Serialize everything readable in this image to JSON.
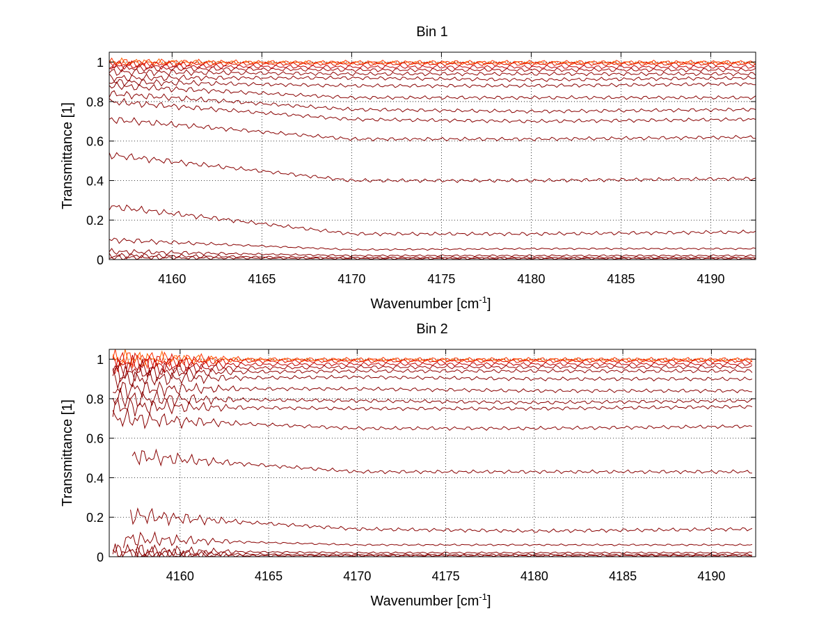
{
  "chart_data": [
    {
      "type": "line",
      "title": "Bin 1",
      "xlabel": "Wavenumber [cm-1]",
      "xlabel_base": "Wavenumber [cm",
      "xlabel_sup": "-1",
      "xlabel_end": "]",
      "ylabel": "Transmittance [1]",
      "xlim": [
        4156.5,
        4192.5
      ],
      "ylim": [
        0,
        1.05
      ],
      "xticks": [
        4160,
        4165,
        4170,
        4175,
        4180,
        4185,
        4190
      ],
      "yticks": [
        0,
        0.2,
        0.4,
        0.6,
        0.8,
        1
      ],
      "ytick_labels": [
        "0",
        "0.2",
        "0.4",
        "0.6",
        "0.8",
        "1"
      ],
      "grid": true,
      "x_start": 4156.5,
      "series": [
        {
          "values": [
            1.0,
            1.0,
            1.0,
            1.0
          ],
          "x": [
            4156.5,
            4170,
            4180,
            4192.5
          ],
          "color": "#ff3000"
        },
        {
          "values": [
            1.0,
            0.995,
            0.995,
            0.995
          ],
          "x": [
            4156.5,
            4170,
            4180,
            4192.5
          ],
          "color": "#ff6000"
        },
        {
          "values": [
            0.99,
            0.99,
            0.99,
            0.99
          ],
          "x": [
            4156.5,
            4170,
            4180,
            4192.5
          ],
          "color": "#e01000"
        },
        {
          "values": [
            0.98,
            0.975,
            0.975,
            0.975
          ],
          "x": [
            4156.5,
            4170,
            4180,
            4192.5
          ],
          "color": "#c00000"
        },
        {
          "values": [
            0.97,
            0.96,
            0.96,
            0.96
          ],
          "x": [
            4156.5,
            4170,
            4180,
            4192.5
          ],
          "color": "#a00000"
        },
        {
          "values": [
            0.95,
            0.94,
            0.94,
            0.94
          ],
          "x": [
            4156.5,
            4170,
            4180,
            4192.5
          ],
          "color": "#900000"
        },
        {
          "values": [
            0.92,
            0.92,
            0.91,
            0.92
          ],
          "x": [
            4156.5,
            4170,
            4180,
            4192.5
          ],
          "color": "#900000"
        },
        {
          "values": [
            0.9,
            0.88,
            0.88,
            0.89
          ],
          "x": [
            4156.5,
            4170,
            4180,
            4192.5
          ],
          "color": "#880000"
        },
        {
          "values": [
            0.88,
            0.82,
            0.82,
            0.82
          ],
          "x": [
            4156.5,
            4170,
            4180,
            4192.5
          ],
          "color": "#880000"
        },
        {
          "values": [
            0.84,
            0.76,
            0.75,
            0.76
          ],
          "x": [
            4156.5,
            4170,
            4180,
            4192.5
          ],
          "color": "#880000"
        },
        {
          "values": [
            0.8,
            0.71,
            0.7,
            0.71
          ],
          "x": [
            4156.5,
            4170,
            4180,
            4192.5
          ],
          "color": "#880000"
        },
        {
          "values": [
            0.71,
            0.61,
            0.61,
            0.62
          ],
          "x": [
            4156.5,
            4170,
            4180,
            4192.5
          ],
          "color": "#880000"
        },
        {
          "values": [
            0.53,
            0.4,
            0.4,
            0.41
          ],
          "x": [
            4156.5,
            4170,
            4180,
            4192.5
          ],
          "color": "#880000"
        },
        {
          "values": [
            0.27,
            0.13,
            0.13,
            0.14
          ],
          "x": [
            4156.5,
            4170,
            4180,
            4192.5
          ],
          "color": "#880000"
        },
        {
          "values": [
            0.1,
            0.05,
            0.055,
            0.055
          ],
          "x": [
            4156.5,
            4170,
            4180,
            4192.5
          ],
          "color": "#880000"
        },
        {
          "values": [
            0.04,
            0.02,
            0.02,
            0.02
          ],
          "x": [
            4156.5,
            4170,
            4180,
            4192.5
          ],
          "color": "#880000"
        },
        {
          "values": [
            0.02,
            0.01,
            0.01,
            0.01
          ],
          "x": [
            4156.5,
            4170,
            4180,
            4192.5
          ],
          "color": "#880000"
        },
        {
          "values": [
            0.01,
            0.005,
            0.005,
            0.005
          ],
          "x": [
            4156.5,
            4170,
            4180,
            4192.5
          ],
          "color": "#880000"
        }
      ]
    },
    {
      "type": "line",
      "title": "Bin 2",
      "xlabel": "Wavenumber [cm-1]",
      "xlabel_base": "Wavenumber [cm",
      "xlabel_sup": "-1",
      "xlabel_end": "]",
      "ylabel": "Transmittance [1]",
      "xlim": [
        4156,
        4192.5
      ],
      "ylim": [
        0,
        1.05
      ],
      "xticks": [
        4160,
        4165,
        4170,
        4175,
        4180,
        4185,
        4190
      ],
      "yticks": [
        0,
        0.2,
        0.4,
        0.6,
        0.8,
        1
      ],
      "ytick_labels": [
        "0",
        "0.2",
        "0.4",
        "0.6",
        "0.8",
        "1"
      ],
      "grid": true,
      "series": [
        {
          "values": [
            1.0,
            1.0,
            1.0,
            1.0
          ],
          "x": [
            4156.2,
            4170,
            4180,
            4192.3
          ],
          "color": "#ff3000"
        },
        {
          "values": [
            1.0,
            0.995,
            0.995,
            0.995
          ],
          "x": [
            4156.2,
            4170,
            4180,
            4192.3
          ],
          "color": "#ff6000"
        },
        {
          "values": [
            0.99,
            0.99,
            0.99,
            0.99
          ],
          "x": [
            4156.2,
            4170,
            4180,
            4192.3
          ],
          "color": "#e01000"
        },
        {
          "values": [
            0.97,
            0.975,
            0.975,
            0.975
          ],
          "x": [
            4156.2,
            4170,
            4180,
            4192.3
          ],
          "color": "#c00000"
        },
        {
          "values": [
            0.95,
            0.96,
            0.96,
            0.96
          ],
          "x": [
            4156.2,
            4170,
            4180,
            4192.3
          ],
          "color": "#a00000"
        },
        {
          "values": [
            0.93,
            0.94,
            0.94,
            0.94
          ],
          "x": [
            4156.2,
            4170,
            4180,
            4192.3
          ],
          "color": "#900000"
        },
        {
          "values": [
            0.9,
            0.91,
            0.9,
            0.9
          ],
          "x": [
            4156.2,
            4170,
            4180,
            4192.3
          ],
          "color": "#880000"
        },
        {
          "values": [
            0.85,
            0.85,
            0.84,
            0.84
          ],
          "x": [
            4156.2,
            4170,
            4180,
            4192.3
          ],
          "color": "#880000"
        },
        {
          "values": [
            0.8,
            0.79,
            0.78,
            0.79
          ],
          "x": [
            4156.2,
            4170,
            4180,
            4192.3
          ],
          "color": "#880000"
        },
        {
          "values": [
            0.76,
            0.75,
            0.75,
            0.76
          ],
          "x": [
            4156.2,
            4170,
            4180,
            4192.3
          ],
          "color": "#880000"
        },
        {
          "values": [
            0.7,
            0.65,
            0.65,
            0.66
          ],
          "x": [
            4156.2,
            4170,
            4180,
            4192.3
          ],
          "color": "#880000"
        },
        {
          "values": [
            0.51,
            0.43,
            0.43,
            0.43
          ],
          "x": [
            4157.3,
            4170,
            4180,
            4192.3
          ],
          "color": "#880000"
        },
        {
          "values": [
            0.21,
            0.14,
            0.13,
            0.14
          ],
          "x": [
            4157.2,
            4170,
            4180,
            4192.3
          ],
          "color": "#880000"
        },
        {
          "values": [
            0.09,
            0.06,
            0.06,
            0.06
          ],
          "x": [
            4156.8,
            4170,
            4180,
            4192.3
          ],
          "color": "#880000"
        },
        {
          "values": [
            0.03,
            0.02,
            0.02,
            0.02
          ],
          "x": [
            4156.2,
            4170,
            4180,
            4192.3
          ],
          "color": "#880000"
        },
        {
          "values": [
            0.015,
            0.01,
            0.01,
            0.01
          ],
          "x": [
            4156.2,
            4170,
            4180,
            4192.3
          ],
          "color": "#880000"
        },
        {
          "values": [
            0.005,
            0.005,
            0.005,
            0.005
          ],
          "x": [
            4157.5,
            4170,
            4180,
            4192.3
          ],
          "color": "#880000"
        }
      ]
    }
  ]
}
